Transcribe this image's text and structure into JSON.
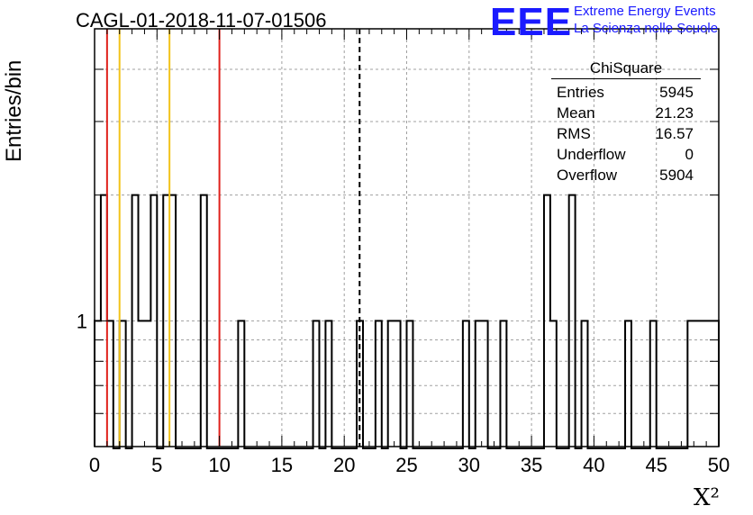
{
  "header": {
    "title": "CAGL-01-2018-11-07-01506",
    "logo_mark": "EEE",
    "logo_line1": "Extreme Energy Events",
    "logo_line2": "La Scienza nelle Scuole"
  },
  "stats_box": {
    "title": "ChiSquare",
    "rows": [
      {
        "label": "Entries",
        "value": "5945"
      },
      {
        "label": "Mean",
        "value": "21.23"
      },
      {
        "label": "RMS",
        "value": "16.57"
      },
      {
        "label": "Underflow",
        "value": "0"
      },
      {
        "label": "Overflow",
        "value": "5904"
      }
    ]
  },
  "colors": {
    "histogram": "#000000",
    "red_line": "#e0201b",
    "yellow_line": "#f2c31a",
    "grid": "#a0a0a0",
    "logo": "#1a1aff"
  },
  "chart_data": {
    "type": "bar",
    "title": "CAGL-01-2018-11-07-01506",
    "xlabel": "X²",
    "ylabel": "Entries/bin",
    "x_ticks": [
      "0",
      "5",
      "10",
      "15",
      "20",
      "25",
      "30",
      "35",
      "40",
      "45",
      "50"
    ],
    "y_ticks": [
      "1"
    ],
    "xlim": [
      0,
      50
    ],
    "ylim": [
      0.5,
      5
    ],
    "y_scale": "log",
    "grid": true,
    "bin_width": 0.5,
    "bins": [
      {
        "x": 0.0,
        "y": 1
      },
      {
        "x": 0.5,
        "y": 2
      },
      {
        "x": 1.0,
        "y": 1
      },
      {
        "x": 2.0,
        "y": 1
      },
      {
        "x": 3.0,
        "y": 2
      },
      {
        "x": 3.5,
        "y": 1
      },
      {
        "x": 4.0,
        "y": 1
      },
      {
        "x": 4.5,
        "y": 2
      },
      {
        "x": 5.5,
        "y": 2
      },
      {
        "x": 6.0,
        "y": 2
      },
      {
        "x": 8.5,
        "y": 2
      },
      {
        "x": 11.5,
        "y": 1
      },
      {
        "x": 17.5,
        "y": 1
      },
      {
        "x": 18.5,
        "y": 1
      },
      {
        "x": 21.0,
        "y": 1
      },
      {
        "x": 22.5,
        "y": 1
      },
      {
        "x": 23.5,
        "y": 1
      },
      {
        "x": 24.0,
        "y": 1
      },
      {
        "x": 25.0,
        "y": 1
      },
      {
        "x": 29.5,
        "y": 1
      },
      {
        "x": 30.5,
        "y": 1
      },
      {
        "x": 31.0,
        "y": 1
      },
      {
        "x": 32.5,
        "y": 1
      },
      {
        "x": 36.0,
        "y": 2
      },
      {
        "x": 36.5,
        "y": 1
      },
      {
        "x": 38.0,
        "y": 2
      },
      {
        "x": 39.0,
        "y": 1
      },
      {
        "x": 42.5,
        "y": 1
      },
      {
        "x": 44.5,
        "y": 1
      },
      {
        "x": 47.5,
        "y": 1
      },
      {
        "x": 48.0,
        "y": 1
      },
      {
        "x": 48.5,
        "y": 1
      },
      {
        "x": 49.0,
        "y": 1
      },
      {
        "x": 49.5,
        "y": 1
      }
    ],
    "vertical_markers": [
      {
        "x": 1.0,
        "color": "#e0201b",
        "style": "solid"
      },
      {
        "x": 2.0,
        "color": "#f2c31a",
        "style": "solid"
      },
      {
        "x": 6.0,
        "color": "#f2c31a",
        "style": "solid"
      },
      {
        "x": 10.0,
        "color": "#e0201b",
        "style": "solid"
      },
      {
        "x": 21.23,
        "color": "#000000",
        "style": "dashed"
      }
    ]
  }
}
